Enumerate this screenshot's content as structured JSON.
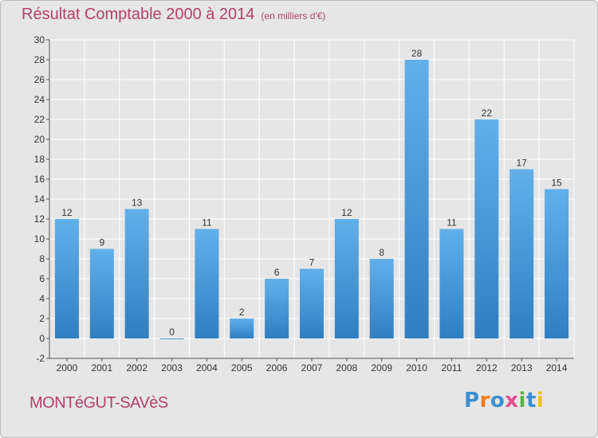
{
  "header": {
    "title": "Résultat Comptable 2000 à 2014",
    "subtitle": "(en milliers d'€)"
  },
  "footer": {
    "place": "MONTéGUT-SAVèS",
    "logo": "Proxiti",
    "logo_colors": [
      "#3b8fd1",
      "#f07d1f",
      "#3b8fd1",
      "#e64c8c",
      "#5ab443",
      "#3b8fd1",
      "#f0c419"
    ]
  },
  "colors": {
    "bar_light": "#62b0ea",
    "bar_dark": "#2f7fc1",
    "title": "#b4406c",
    "background": "#e6e6e6"
  },
  "chart_data": {
    "type": "bar",
    "categories": [
      "2000",
      "2001",
      "2002",
      "2003",
      "2004",
      "2005",
      "2006",
      "2007",
      "2008",
      "2009",
      "2010",
      "2011",
      "2012",
      "2013",
      "2014"
    ],
    "values": [
      12,
      9,
      13,
      0,
      11,
      2,
      6,
      7,
      12,
      8,
      28,
      11,
      22,
      17,
      15
    ],
    "title": "Résultat Comptable 2000 à 2014",
    "ylim": [
      -2,
      30
    ],
    "yticks": [
      -2,
      0,
      2,
      4,
      6,
      8,
      10,
      12,
      14,
      16,
      18,
      20,
      22,
      24,
      26,
      28,
      30
    ],
    "grid": true
  }
}
